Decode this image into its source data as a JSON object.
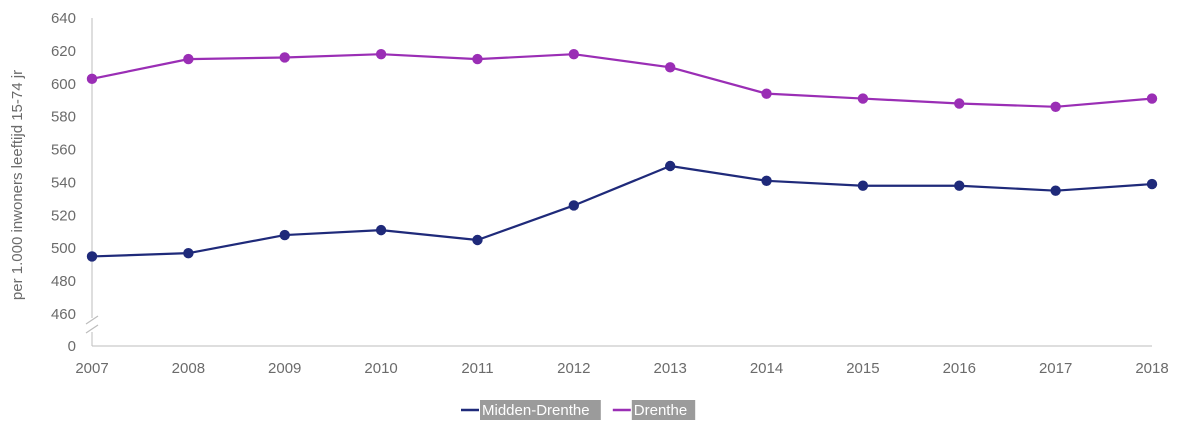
{
  "chart_data": {
    "type": "line",
    "ylabel": "per 1.000 inwoners leeftijd 15-74 jr",
    "xlabel": "",
    "categories": [
      "2007",
      "2008",
      "2009",
      "2010",
      "2011",
      "2012",
      "2013",
      "2014",
      "2015",
      "2016",
      "2017",
      "2018"
    ],
    "y_ticks": [
      "0",
      "460",
      "480",
      "500",
      "520",
      "540",
      "560",
      "580",
      "600",
      "620",
      "640"
    ],
    "ylim": [
      460,
      640
    ],
    "axis_break": true,
    "grid": false,
    "legend_position": "bottom-center",
    "series": [
      {
        "name": "Midden-Drenthe",
        "color": "#1f2a7a",
        "values": [
          495,
          497,
          508,
          511,
          505,
          526,
          550,
          541,
          538,
          538,
          535,
          539
        ]
      },
      {
        "name": "Drenthe",
        "color": "#9a2eb5",
        "values": [
          603,
          615,
          616,
          618,
          615,
          618,
          610,
          594,
          591,
          588,
          586,
          591
        ]
      }
    ]
  }
}
